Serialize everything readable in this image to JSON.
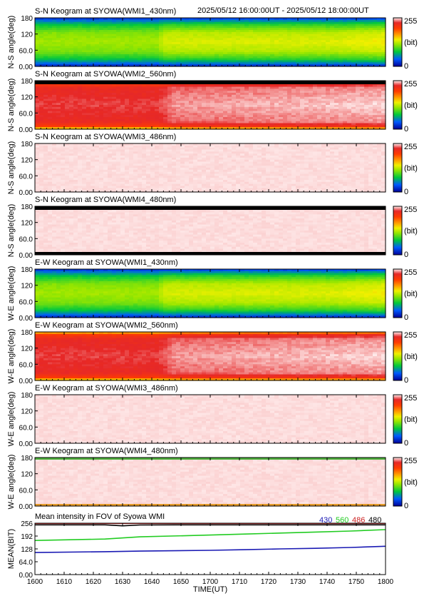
{
  "header": {
    "time_range": "2025/05/12 16:00:00UT - 2025/05/12 18:00:00UT"
  },
  "colorbar": {
    "max": "255",
    "unit": "(bit)",
    "min": "0"
  },
  "chart_data": [
    {
      "type": "heatmap",
      "title": "S-N Keogram at SYOWA(WMI1_430nm)",
      "ylabel": "N-S angle(deg)",
      "yticks": [
        "180",
        "120",
        "60.0",
        "0.00"
      ],
      "ylim": [
        0,
        180
      ],
      "xlim": [
        1600,
        1800
      ],
      "colormap": "rainbow",
      "clim": [
        0,
        255
      ],
      "profile": [
        [
          0,
          0.05
        ],
        [
          0.06,
          0.18
        ],
        [
          0.15,
          0.32
        ],
        [
          0.3,
          0.45
        ],
        [
          0.5,
          0.5
        ],
        [
          0.7,
          0.46
        ],
        [
          0.85,
          0.33
        ],
        [
          0.94,
          0.2
        ],
        [
          1,
          0.08
        ]
      ],
      "time_trend": [
        [
          0,
          0.93
        ],
        [
          0.35,
          0.93
        ],
        [
          0.37,
          1.05
        ],
        [
          0.85,
          1.06
        ],
        [
          1,
          1.12
        ]
      ]
    },
    {
      "type": "heatmap",
      "title": "S-N Keogram at SYOWA(WMI2_560nm)",
      "ylabel": "N-S angle(deg)",
      "yticks": [
        "180",
        "120",
        "60.0",
        "0.00"
      ],
      "ylim": [
        0,
        180
      ],
      "xlim": [
        1600,
        1800
      ],
      "colormap": "rainbow",
      "clim": [
        0,
        255
      ],
      "profile": [
        [
          0,
          0.5
        ],
        [
          0.05,
          0.8
        ],
        [
          0.15,
          0.9
        ],
        [
          0.5,
          0.93
        ],
        [
          0.85,
          0.9
        ],
        [
          0.94,
          0.82
        ],
        [
          1,
          0.6
        ]
      ],
      "time_trend": [
        [
          0,
          0.98
        ],
        [
          0.35,
          0.98
        ],
        [
          0.4,
          1.03
        ],
        [
          1,
          1.06
        ]
      ],
      "top_black": true
    },
    {
      "type": "heatmap",
      "title": "S-N Keogram at SYOWA(WMI3_486nm)",
      "ylabel": "N-S angle(deg)",
      "yticks": [
        "180",
        "120",
        "60.0",
        "0.00"
      ],
      "ylim": [
        0,
        180
      ],
      "xlim": [
        1600,
        1800
      ],
      "colormap": "rainbow",
      "clim": [
        0,
        255
      ],
      "saturated": true
    },
    {
      "type": "heatmap",
      "title": "S-N Keogram at SYOWA(WMI4_480nm)",
      "ylabel": "N-S angle(deg)",
      "yticks": [
        "180",
        "120",
        "60.0",
        "0.00"
      ],
      "ylim": [
        0,
        180
      ],
      "xlim": [
        1600,
        1800
      ],
      "colormap": "rainbow",
      "clim": [
        0,
        255
      ],
      "saturated": true,
      "top_black": true,
      "bottom_black": true
    },
    {
      "type": "heatmap",
      "title": "E-W Keogram at SYOWA(WMI1_430nm)",
      "ylabel": "W-E angle(deg)",
      "yticks": [
        "180",
        "120",
        "60.0",
        "0.00"
      ],
      "ylim": [
        0,
        180
      ],
      "xlim": [
        1600,
        1800
      ],
      "colormap": "rainbow",
      "clim": [
        0,
        255
      ],
      "profile": [
        [
          0,
          0.05
        ],
        [
          0.06,
          0.18
        ],
        [
          0.15,
          0.32
        ],
        [
          0.3,
          0.45
        ],
        [
          0.5,
          0.5
        ],
        [
          0.7,
          0.46
        ],
        [
          0.85,
          0.33
        ],
        [
          0.94,
          0.2
        ],
        [
          1,
          0.08
        ]
      ],
      "time_trend": [
        [
          0,
          0.93
        ],
        [
          0.35,
          0.93
        ],
        [
          0.37,
          1.05
        ],
        [
          0.85,
          1.06
        ],
        [
          1,
          1.12
        ]
      ]
    },
    {
      "type": "heatmap",
      "title": "E-W Keogram at SYOWA(WMI2_560nm)",
      "ylabel": "W-E angle(deg)",
      "yticks": [
        "180",
        "120",
        "60.0",
        "0.00"
      ],
      "ylim": [
        0,
        180
      ],
      "xlim": [
        1600,
        1800
      ],
      "colormap": "rainbow",
      "clim": [
        0,
        255
      ],
      "profile": [
        [
          0,
          0.5
        ],
        [
          0.05,
          0.8
        ],
        [
          0.15,
          0.9
        ],
        [
          0.5,
          0.93
        ],
        [
          0.85,
          0.9
        ],
        [
          0.94,
          0.82
        ],
        [
          1,
          0.6
        ]
      ],
      "time_trend": [
        [
          0,
          0.98
        ],
        [
          0.35,
          0.98
        ],
        [
          0.4,
          1.03
        ],
        [
          1,
          1.06
        ]
      ]
    },
    {
      "type": "heatmap",
      "title": "E-W Keogram at SYOWA(WMI3_486nm)",
      "ylabel": "W-E angle(deg)",
      "yticks": [
        "180",
        "120",
        "60.0",
        "0.00"
      ],
      "ylim": [
        0,
        180
      ],
      "xlim": [
        1600,
        1800
      ],
      "colormap": "rainbow",
      "clim": [
        0,
        255
      ],
      "saturated": true
    },
    {
      "type": "heatmap",
      "title": "E-W Keogram at SYOWA(WMI4_480nm)",
      "ylabel": "W-E angle(deg)",
      "yticks": [
        "180",
        "120",
        "60.0",
        "0.00"
      ],
      "ylim": [
        0,
        180
      ],
      "xlim": [
        1600,
        1800
      ],
      "colormap": "rainbow",
      "clim": [
        0,
        255
      ],
      "saturated": true,
      "edge_green": true
    },
    {
      "type": "line",
      "title": "Mean intensity in FOV of Syowa WMI",
      "ylabel": "MEAN(BIT)",
      "xlabel": "TIME(UT)",
      "xticks": [
        "1600",
        "1610",
        "1620",
        "1630",
        "1640",
        "1650",
        "1700",
        "1710",
        "1720",
        "1730",
        "1740",
        "1750",
        "1800"
      ],
      "yticks": [
        "256",
        "192",
        "128",
        "64.0",
        "0.00"
      ],
      "xlim": [
        1600,
        1800
      ],
      "ylim": [
        0,
        256
      ],
      "series": [
        {
          "name": "430",
          "color": "#1a1ab4",
          "x": [
            1600,
            1640,
            1660,
            1700,
            1720,
            1740,
            1760,
            1780,
            1800
          ],
          "y": [
            110,
            114,
            117,
            121,
            124,
            128,
            131,
            135,
            141
          ]
        },
        {
          "name": "560",
          "color": "#22cc22",
          "x": [
            1600,
            1640,
            1660,
            1700,
            1720,
            1740,
            1760,
            1780,
            1800
          ],
          "y": [
            170,
            177,
            188,
            197,
            202,
            207,
            212,
            217,
            224
          ]
        },
        {
          "name": "486",
          "color": "#cc2222",
          "x": [
            1600,
            1640,
            1660,
            1700,
            1720,
            1740,
            1760,
            1780,
            1800
          ],
          "y": [
            255,
            255,
            255,
            255,
            255,
            255,
            255,
            255,
            255
          ]
        },
        {
          "name": "480",
          "color": "#000000",
          "x": [
            1600,
            1640,
            1650,
            1660,
            1680,
            1700,
            1720,
            1740,
            1760,
            1780,
            1800
          ],
          "y": [
            248,
            248,
            243,
            247,
            248,
            248,
            248,
            248,
            248,
            248,
            248
          ]
        }
      ]
    }
  ]
}
